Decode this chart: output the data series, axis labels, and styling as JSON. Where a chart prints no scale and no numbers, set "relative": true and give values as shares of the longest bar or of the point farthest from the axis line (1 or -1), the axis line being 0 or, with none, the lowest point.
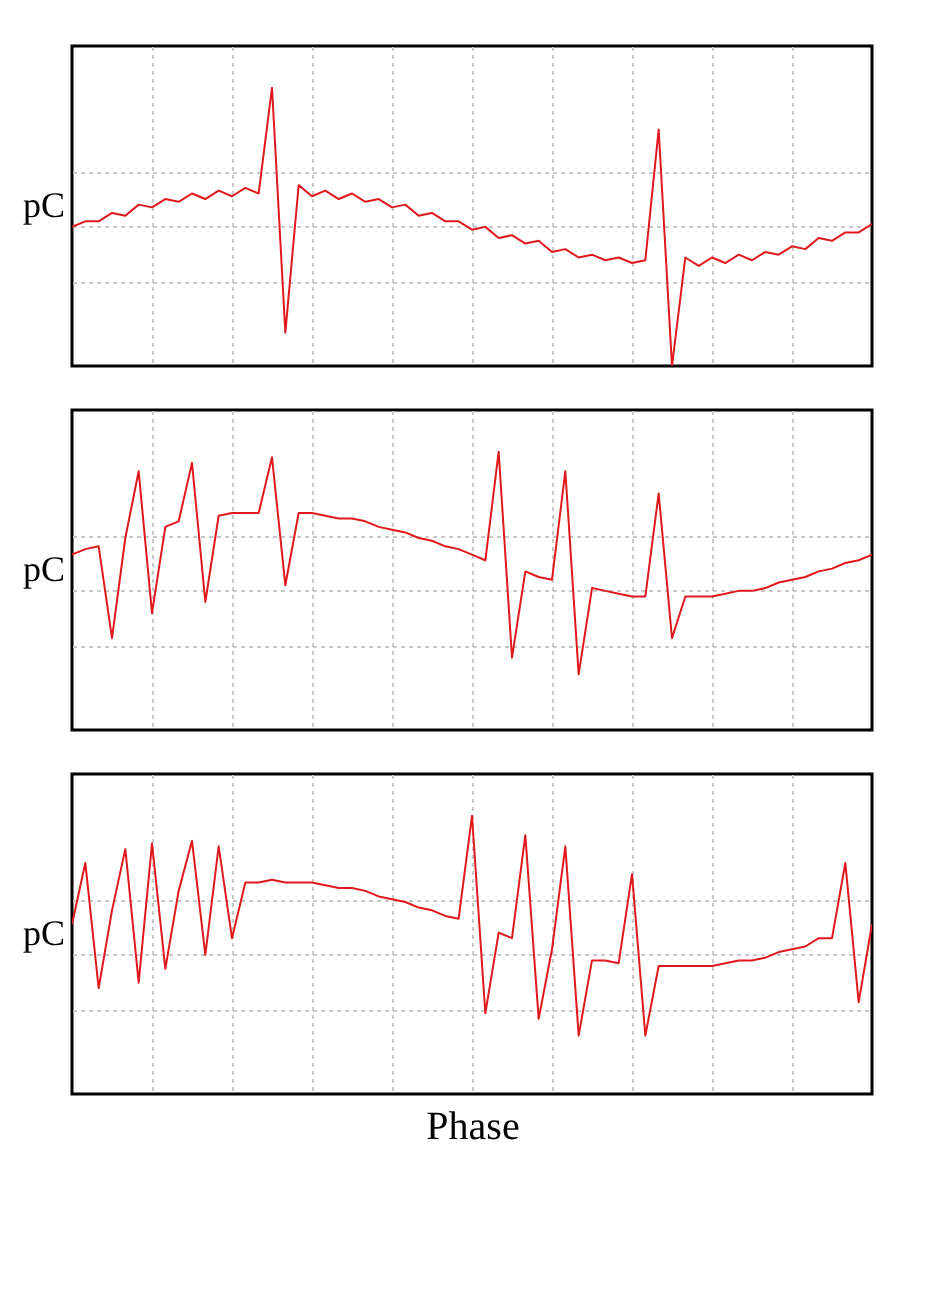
{
  "chart_data": [
    {
      "type": "line",
      "relative": true,
      "ylabel": "pC",
      "grid": true,
      "tick_labels": false,
      "categories": [
        null,
        null,
        null,
        null,
        null,
        null,
        null,
        null,
        null,
        null,
        null,
        null,
        null,
        null,
        null,
        null,
        null,
        null,
        null,
        null,
        null,
        null,
        null,
        null,
        null,
        null,
        null,
        null,
        null,
        null,
        null,
        null,
        null,
        null,
        null,
        null,
        null,
        null,
        null,
        null,
        null,
        null,
        null,
        null,
        null,
        null,
        null,
        null,
        null,
        null,
        null,
        null,
        null,
        null,
        null,
        null,
        null,
        null,
        null,
        null,
        null
      ],
      "series": [
        {
          "color": "#e0191e",
          "values": [
            0.5,
            0.52,
            0.52,
            0.55,
            0.54,
            0.58,
            0.57,
            0.6,
            0.59,
            0.62,
            0.6,
            0.63,
            0.61,
            0.64,
            0.62,
            1.0,
            0.12,
            0.65,
            0.61,
            0.63,
            0.6,
            0.62,
            0.59,
            0.6,
            0.57,
            0.58,
            0.54,
            0.55,
            0.52,
            0.52,
            0.49,
            0.5,
            0.46,
            0.47,
            0.44,
            0.45,
            0.41,
            0.42,
            0.39,
            0.4,
            0.38,
            0.39,
            0.37,
            0.38,
            0.85,
            0,
            0.39,
            0.36,
            0.39,
            0.37,
            0.4,
            0.38,
            0.41,
            0.4,
            0.43,
            0.42,
            0.46,
            0.45,
            0.48,
            0.48,
            0.51
          ]
        }
      ]
    },
    {
      "type": "line",
      "relative": true,
      "ylabel": "pC",
      "grid": true,
      "tick_labels": false,
      "categories": [
        null,
        null,
        null,
        null,
        null,
        null,
        null,
        null,
        null,
        null,
        null,
        null,
        null,
        null,
        null,
        null,
        null,
        null,
        null,
        null,
        null,
        null,
        null,
        null,
        null,
        null,
        null,
        null,
        null,
        null,
        null,
        null,
        null,
        null,
        null,
        null,
        null,
        null,
        null,
        null,
        null,
        null,
        null,
        null,
        null,
        null,
        null,
        null,
        null,
        null,
        null,
        null,
        null,
        null,
        null,
        null,
        null,
        null,
        null,
        null,
        null
      ],
      "series": [
        {
          "color": "#e0191e",
          "values": [
            0.63,
            0.65,
            0.66,
            0.33,
            0.69,
            0.93,
            0.42,
            0.73,
            0.75,
            0.96,
            0.46,
            0.77,
            0.78,
            0.78,
            0.78,
            0.98,
            0.52,
            0.78,
            0.78,
            0.77,
            0.76,
            0.76,
            0.75,
            0.73,
            0.72,
            0.71,
            0.69,
            0.68,
            0.66,
            0.65,
            0.63,
            0.61,
            1.0,
            0.26,
            0.57,
            0.55,
            0.54,
            0.93,
            0.2,
            0.51,
            0.5,
            0.49,
            0.48,
            0.48,
            0.85,
            0.33,
            0.48,
            0.48,
            0.48,
            0.49,
            0.5,
            0.5,
            0.51,
            0.53,
            0.54,
            0.55,
            0.57,
            0.58,
            0.6,
            0.61,
            0.63
          ]
        }
      ]
    },
    {
      "type": "line",
      "relative": true,
      "ylabel": "pC",
      "xlabel": "Phase",
      "grid": true,
      "tick_labels": false,
      "categories": [
        null,
        null,
        null,
        null,
        null,
        null,
        null,
        null,
        null,
        null,
        null,
        null,
        null,
        null,
        null,
        null,
        null,
        null,
        null,
        null,
        null,
        null,
        null,
        null,
        null,
        null,
        null,
        null,
        null,
        null,
        null,
        null,
        null,
        null,
        null,
        null,
        null,
        null,
        null,
        null,
        null,
        null,
        null,
        null,
        null,
        null,
        null,
        null,
        null,
        null,
        null,
        null,
        null,
        null,
        null,
        null,
        null,
        null,
        null,
        null,
        null
      ],
      "series": [
        {
          "color": "#e0191e",
          "values": [
            0.61,
            0.83,
            0.38,
            0.66,
            0.88,
            0.4,
            0.9,
            0.45,
            0.73,
            0.91,
            0.5,
            0.89,
            0.56,
            0.76,
            0.76,
            0.77,
            0.76,
            0.76,
            0.76,
            0.75,
            0.74,
            0.74,
            0.73,
            0.71,
            0.7,
            0.69,
            0.67,
            0.66,
            0.64,
            0.63,
            1.0,
            0.29,
            0.58,
            0.56,
            0.93,
            0.27,
            0.52,
            0.89,
            0.21,
            0.48,
            0.48,
            0.47,
            0.79,
            0.21,
            0.46,
            0.46,
            0.46,
            0.46,
            0.46,
            0.47,
            0.48,
            0.48,
            0.49,
            0.51,
            0.52,
            0.53,
            0.56,
            0.56,
            0.83,
            0.33,
            0.61
          ]
        }
      ]
    }
  ]
}
